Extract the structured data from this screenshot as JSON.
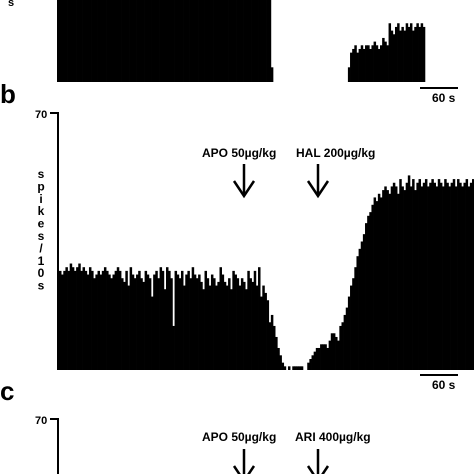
{
  "figure": {
    "panels": [
      {
        "letter": "",
        "ytop": "",
        "scale_label": "60 s",
        "annotations": []
      },
      {
        "letter": "b",
        "ytop": "70",
        "ylabel": "spikes/10s",
        "scale_label": "60 s",
        "annotations": [
          {
            "label": "APO 50µg/kg"
          },
          {
            "label": "HAL 200µg/kg"
          }
        ]
      },
      {
        "letter": "c",
        "ytop": "70",
        "scale_label": "",
        "annotations": [
          {
            "label": "APO 50µg/kg"
          },
          {
            "label": "ARI 400µg/kg"
          }
        ]
      }
    ],
    "top_fragment_text": "s"
  },
  "chart_data": [
    {
      "type": "bar",
      "panel": "a (partial, top cropped)",
      "xlabel": "",
      "ylabel": "spikes/10s",
      "ylim": [
        0,
        70
      ],
      "bin_seconds": 10,
      "segments": [
        {
          "start_bin": 0,
          "values": [
            70,
            70,
            68,
            70,
            70,
            70,
            70,
            70,
            70,
            70,
            70,
            70,
            70,
            70,
            70,
            70,
            70,
            70,
            70,
            70,
            70,
            70,
            70,
            70,
            70,
            70,
            70,
            70,
            70,
            70,
            70,
            70,
            70,
            70,
            70,
            70,
            70,
            70,
            70,
            70,
            70,
            70,
            70,
            70,
            70,
            70,
            70,
            70,
            70,
            70,
            70,
            70,
            70,
            70,
            70,
            70,
            70,
            70,
            70,
            70,
            70,
            70,
            70,
            70,
            70,
            70,
            70,
            70,
            70,
            70,
            70,
            70,
            70,
            70,
            70,
            70,
            70,
            70,
            70,
            70,
            70,
            70,
            70,
            70,
            70,
            70,
            70,
            70,
            70,
            70,
            70,
            70,
            70,
            70,
            70,
            70,
            70,
            70,
            70,
            4
          ]
        },
        {
          "start_bin": 135,
          "values": [
            4,
            8,
            9,
            10,
            8,
            9,
            10,
            9,
            10,
            10,
            9,
            10,
            11,
            10,
            9,
            10,
            12,
            11,
            10,
            16,
            14,
            13,
            15,
            16,
            14,
            15,
            14,
            16,
            15,
            16,
            14,
            15,
            16,
            15,
            16,
            15
          ]
        }
      ]
    },
    {
      "type": "bar",
      "panel": "b",
      "xlabel": "",
      "ylabel": "spikes/10s",
      "ylim": [
        0,
        70
      ],
      "bin_seconds": 10,
      "events": [
        {
          "label": "APO 50µg/kg",
          "bin": 96
        },
        {
          "label": "HAL 200µg/kg",
          "bin": 131
        }
      ],
      "segments": [
        {
          "start_bin": 0,
          "values": [
            27,
            26,
            27,
            28,
            27,
            29,
            28,
            27,
            28,
            29,
            27,
            28,
            27,
            26,
            28,
            27,
            25,
            26,
            27,
            26,
            27,
            28,
            27,
            26,
            25,
            26,
            27,
            28,
            27,
            25,
            24,
            27,
            23,
            28,
            26,
            25,
            26,
            27,
            25,
            24,
            27,
            26,
            25,
            20,
            26,
            27,
            25,
            28,
            27,
            22,
            28,
            27,
            25,
            12,
            27,
            26,
            25,
            27,
            23,
            26,
            27,
            25,
            28,
            26,
            25,
            26,
            24,
            22,
            27,
            25,
            23,
            26,
            25,
            23,
            24,
            28,
            26,
            24,
            23,
            25,
            22,
            27,
            26,
            25,
            23,
            25,
            24,
            22,
            27,
            25,
            24,
            27,
            23,
            28,
            20,
            23,
            21,
            19,
            13,
            15,
            12,
            9,
            6,
            4,
            2,
            1,
            0,
            1,
            0,
            1,
            1,
            1,
            1,
            1
          ]
        },
        {
          "start_bin": 116,
          "values": [
            2,
            3,
            4,
            5,
            6,
            6,
            7,
            7,
            7,
            6,
            8,
            10,
            10,
            9,
            8,
            12,
            13,
            15,
            17,
            20,
            23,
            25,
            28,
            31,
            33,
            35,
            37,
            40,
            42,
            43,
            45,
            47,
            46,
            48,
            47,
            49,
            50,
            49,
            48,
            50,
            51,
            50,
            48,
            52,
            50,
            49,
            51,
            53,
            50,
            52,
            49,
            51,
            52,
            50,
            51,
            52,
            50,
            51,
            52,
            51,
            50,
            52,
            51,
            50,
            52,
            51,
            50,
            51,
            52,
            50,
            52,
            51,
            50,
            51,
            52,
            50,
            51,
            52,
            51,
            50,
            52,
            50,
            51,
            52
          ]
        }
      ]
    },
    {
      "type": "bar",
      "panel": "c (partial, bottom cropped)",
      "xlabel": "",
      "ylabel": "",
      "ylim": [
        0,
        70
      ],
      "events": [
        {
          "label": "APO 50µg/kg"
        },
        {
          "label": "ARI 400µg/kg"
        }
      ],
      "segments": []
    }
  ]
}
